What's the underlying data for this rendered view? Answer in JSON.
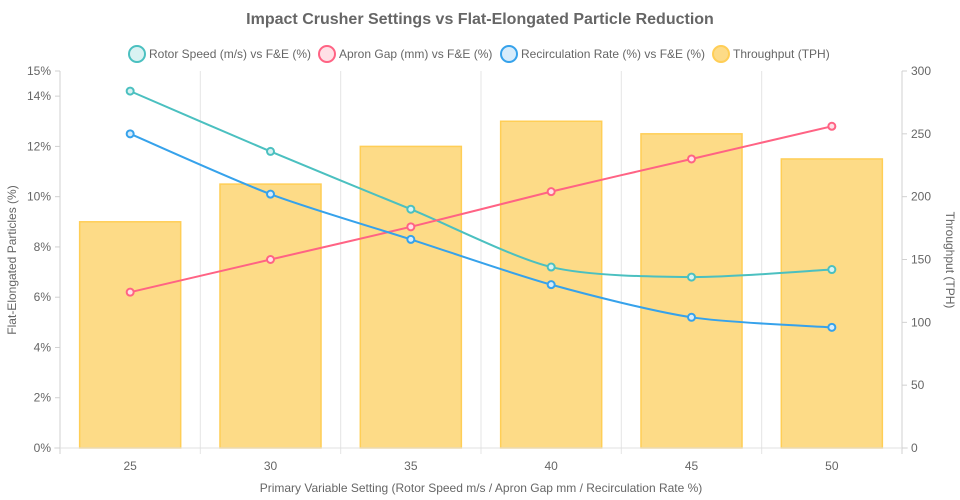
{
  "chart_data": {
    "type": "bar+line",
    "title": "Impact Crusher Settings vs Flat-Elongated Particle Reduction",
    "categories": [
      "25",
      "30",
      "35",
      "40",
      "45",
      "50"
    ],
    "xlabel": "Primary Variable Setting (Rotor Speed m/s / Apron Gap mm / Recirculation Rate %)",
    "ylabel_left": "Flat-Elongated Particles (%)",
    "ylabel_right": "Throughput (TPH)",
    "ylim_left": [
      0,
      15
    ],
    "ylim_right": [
      0,
      300
    ],
    "yticks_left": [
      "0%",
      "2%",
      "4%",
      "6%",
      "8%",
      "10%",
      "12%",
      "14%",
      "15%"
    ],
    "yticks_left_values": [
      0,
      2,
      4,
      6,
      8,
      10,
      12,
      14,
      15
    ],
    "yticks_right": [
      "0",
      "50",
      "100",
      "150",
      "200",
      "250",
      "300"
    ],
    "yticks_right_values": [
      0,
      50,
      100,
      150,
      200,
      250,
      300
    ],
    "grid": "vertical only",
    "legend_position": "top",
    "series": [
      {
        "name": "Rotor Speed (m/s) vs F&E (%)",
        "type": "line",
        "axis": "left",
        "color": "#4bc0c0",
        "fill": "#d9f2f2",
        "values": [
          14.2,
          11.8,
          9.5,
          7.2,
          6.8,
          7.1
        ]
      },
      {
        "name": "Apron Gap (mm) vs F&E (%)",
        "type": "line",
        "axis": "left",
        "color": "#ff6384",
        "fill": "#ffe0e6",
        "values": [
          6.2,
          7.5,
          8.8,
          10.2,
          11.5,
          12.8
        ]
      },
      {
        "name": "Recirculation Rate (%) vs F&E (%)",
        "type": "line",
        "axis": "left",
        "color": "#36a2eb",
        "fill": "#d7ecfb",
        "values": [
          12.5,
          10.1,
          8.3,
          6.5,
          5.2,
          4.8
        ]
      },
      {
        "name": "Throughput (TPH)",
        "type": "bar",
        "axis": "right",
        "color": "#ffce56",
        "fill": "#fddb87",
        "values": [
          180,
          210,
          240,
          260,
          250,
          230
        ]
      }
    ]
  }
}
